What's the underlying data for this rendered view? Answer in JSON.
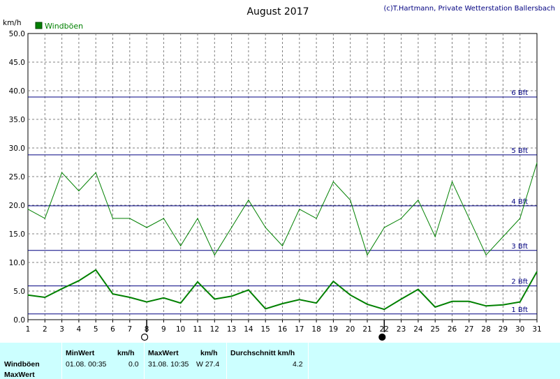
{
  "header": {
    "title": "August 2017",
    "credit": "(c)T.Hartmann, Private Wetterstation Ballersbach"
  },
  "chart_data": {
    "type": "line",
    "title": "August 2017",
    "ylabel": "km/h",
    "ylim": [
      0,
      50
    ],
    "yticks": [
      "0.0",
      "5.0",
      "10.0",
      "15.0",
      "20.0",
      "25.0",
      "30.0",
      "35.0",
      "40.0",
      "45.0",
      "50.0"
    ],
    "x": [
      1,
      2,
      3,
      4,
      5,
      6,
      7,
      8,
      9,
      10,
      11,
      12,
      13,
      14,
      15,
      16,
      17,
      18,
      19,
      20,
      21,
      22,
      23,
      24,
      25,
      26,
      27,
      28,
      29,
      30,
      31
    ],
    "xticks": [
      "1",
      "2",
      "3",
      "4",
      "5",
      "6",
      "7",
      "8",
      "9",
      "10",
      "11",
      "12",
      "13",
      "14",
      "15",
      "16",
      "17",
      "18",
      "19",
      "20",
      "21",
      "22",
      "23",
      "24",
      "25",
      "26",
      "27",
      "28",
      "29",
      "30",
      "31"
    ],
    "grid": true,
    "legend": "top-left",
    "series": [
      {
        "name": "Windböen",
        "color": "#008000",
        "values": [
          4.3,
          3.9,
          5.4,
          6.8,
          8.7,
          4.5,
          3.9,
          3.1,
          3.8,
          2.9,
          6.6,
          3.6,
          4.1,
          5.2,
          1.9,
          2.8,
          3.5,
          2.9,
          6.7,
          4.3,
          2.7,
          1.8,
          3.6,
          5.3,
          2.2,
          3.2,
          3.2,
          2.4,
          2.6,
          3.1,
          8.4
        ]
      },
      {
        "name": "MaxWert",
        "color": "#008000",
        "values": [
          19.3,
          17.7,
          25.7,
          22.5,
          25.7,
          17.7,
          17.7,
          16.1,
          17.7,
          12.9,
          17.7,
          11.3,
          16.1,
          20.9,
          16.1,
          12.9,
          19.3,
          17.7,
          24.1,
          20.9,
          11.3,
          16.1,
          17.7,
          20.9,
          14.5,
          24.1,
          17.7,
          11.3,
          14.5,
          17.7,
          27.4
        ]
      }
    ],
    "beaufort_lines": [
      {
        "label": "1 Bft",
        "value": 1.0
      },
      {
        "label": "2 Bft",
        "value": 5.9
      },
      {
        "label": "3 Bft",
        "value": 12.1
      },
      {
        "label": "4 Bft",
        "value": 19.9
      },
      {
        "label": "5 Bft",
        "value": 28.8
      },
      {
        "label": "6 Bft",
        "value": 38.9
      }
    ],
    "line_color": "#000080",
    "moon_phases": [
      {
        "day": 8,
        "phase": "full-moon"
      },
      {
        "day": 22,
        "phase": "new-moon"
      }
    ]
  },
  "stats": {
    "headers": {
      "min": "MinWert",
      "min_unit": "km/h",
      "max": "MaxWert",
      "max_unit": "km/h",
      "avg": "Durchschnitt km/h"
    },
    "rows": [
      {
        "label": "Windböen",
        "min_time": "01.08.  00:35",
        "min_value": "0.0",
        "max_time": "31.08.  10:35",
        "max_value": "W 27.4",
        "avg": "4.2"
      },
      {
        "label": "MaxWert"
      }
    ]
  }
}
